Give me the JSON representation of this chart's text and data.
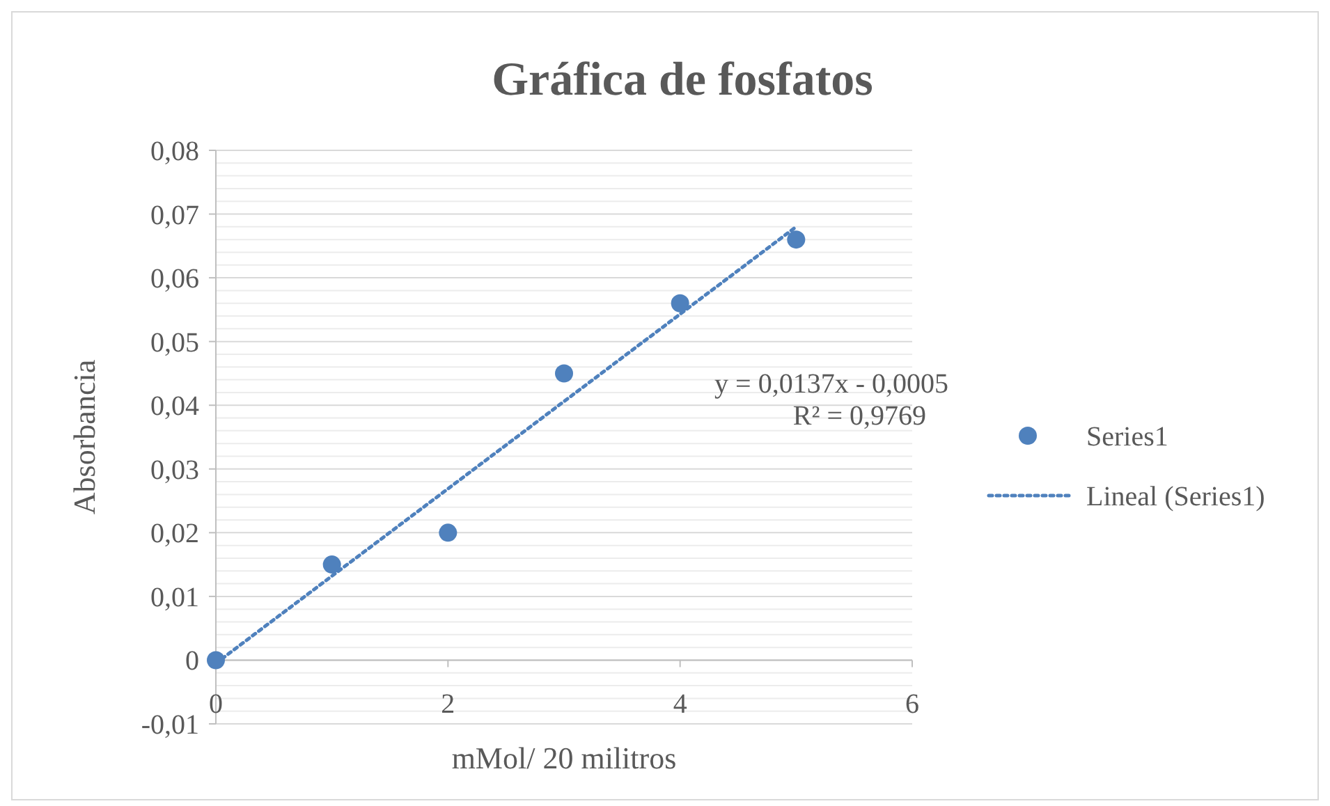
{
  "chart_data": {
    "type": "scatter",
    "title": "Gráfica de fosfatos",
    "xlabel": "mMol/ 20 militros",
    "ylabel": "Absorbancia",
    "xlim": [
      0,
      6
    ],
    "xticks": [
      0,
      2,
      4,
      6
    ],
    "ylim": [
      -0.01,
      0.08
    ],
    "yticks": [
      {
        "value": -0.01,
        "label": "-0,01"
      },
      {
        "value": -0.008,
        "label": null
      },
      {
        "value": -0.006,
        "label": null
      },
      {
        "value": -0.004,
        "label": null
      },
      {
        "value": -0.002,
        "label": null
      },
      0,
      {
        "value": 0.002,
        "label": null
      },
      {
        "value": 0.004,
        "label": null
      },
      {
        "value": 0.006,
        "label": null
      },
      {
        "value": 0.008,
        "label": null
      },
      {
        "value": 0.01,
        "label": "0,01"
      },
      {
        "value": 0.012,
        "label": null
      },
      {
        "value": 0.014,
        "label": null
      },
      {
        "value": 0.016,
        "label": null
      },
      {
        "value": 0.018,
        "label": null
      },
      {
        "value": 0.02,
        "label": "0,02"
      },
      {
        "value": 0.022,
        "label": null
      },
      {
        "value": 0.024,
        "label": null
      },
      {
        "value": 0.026,
        "label": null
      },
      {
        "value": 0.028,
        "label": null
      },
      {
        "value": 0.03,
        "label": "0,03"
      },
      {
        "value": 0.032,
        "label": null
      },
      {
        "value": 0.034,
        "label": null
      },
      {
        "value": 0.036,
        "label": null
      },
      {
        "value": 0.038,
        "label": null
      },
      {
        "value": 0.04,
        "label": "0,04"
      },
      {
        "value": 0.042,
        "label": null
      },
      {
        "value": 0.044,
        "label": null
      },
      {
        "value": 0.046,
        "label": null
      },
      {
        "value": 0.048,
        "label": null
      },
      {
        "value": 0.05,
        "label": "0,05"
      },
      {
        "value": 0.052,
        "label": null
      },
      {
        "value": 0.054,
        "label": null
      },
      {
        "value": 0.056,
        "label": null
      },
      {
        "value": 0.058,
        "label": null
      },
      {
        "value": 0.06,
        "label": "0,06"
      },
      {
        "value": 0.062,
        "label": null
      },
      {
        "value": 0.064,
        "label": null
      },
      {
        "value": 0.066,
        "label": null
      },
      {
        "value": 0.068,
        "label": null
      },
      {
        "value": 0.07,
        "label": "0,07"
      },
      {
        "value": 0.072,
        "label": null
      },
      {
        "value": 0.074,
        "label": null
      },
      {
        "value": 0.076,
        "label": null
      },
      {
        "value": 0.078,
        "label": null
      },
      {
        "value": 0.08,
        "label": "0,08"
      }
    ],
    "grid": "y",
    "legend": "right",
    "annotations": [
      "y = 0,0137x - 0,0005",
      "R² = 0,9769"
    ],
    "series": [
      {
        "name": "Series1",
        "marker": "circle",
        "color": "#4f81bd",
        "x": [
          0,
          1,
          2,
          3,
          4,
          5
        ],
        "values": [
          0,
          0.015,
          0.02,
          0.045,
          0.056,
          0.066
        ]
      },
      {
        "name": "Lineal (Series1)",
        "type": "line",
        "line_style": "dotted",
        "color": "#4f81bd",
        "x": [
          0,
          5
        ],
        "values": [
          -0.0005,
          0.068
        ]
      }
    ]
  }
}
